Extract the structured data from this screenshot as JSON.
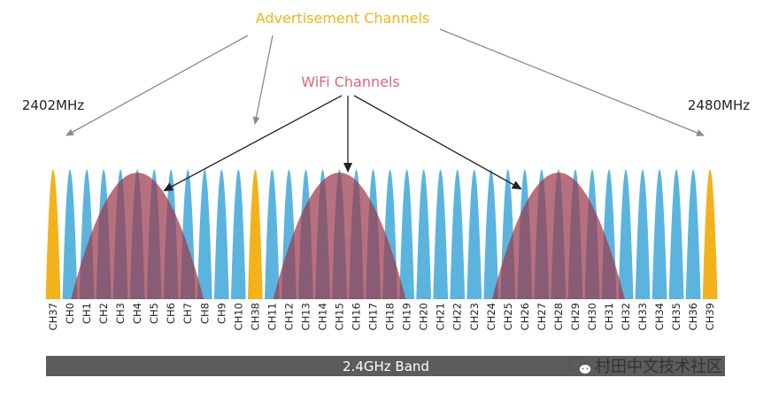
{
  "labels": {
    "advertisement": "Advertisement Channels",
    "wifi": "WiFi Channels",
    "freq_low": "2402MHz",
    "freq_high": "2480MHz",
    "band": "2.4GHz Band",
    "watermark": "村田中文技术社区"
  },
  "channels": [
    "CH37",
    "CH0",
    "CH1",
    "CH2",
    "CH3",
    "CH4",
    "CH5",
    "CH6",
    "CH7",
    "CH8",
    "CH9",
    "CH10",
    "CH38",
    "CH11",
    "CH12",
    "CH13",
    "CH14",
    "CH15",
    "CH16",
    "CH17",
    "CH18",
    "CH19",
    "CH20",
    "CH21",
    "CH22",
    "CH23",
    "CH24",
    "CH25",
    "CH26",
    "CH27",
    "CH28",
    "CH29",
    "CH30",
    "CH31",
    "CH32",
    "CH33",
    "CH34",
    "CH35",
    "CH36",
    "CH39"
  ],
  "advertisement_channels": [
    "CH37",
    "CH38",
    "CH39"
  ],
  "colors": {
    "advertisement": "#f2b21c",
    "data": "#5bb4de",
    "wifi": "#9b3a4c",
    "adv_label": "#f2b21c",
    "wifi_label": "#d9687a",
    "band_bar": "#5c5c5c",
    "arrow_gray": "#8a8a8a"
  }
}
